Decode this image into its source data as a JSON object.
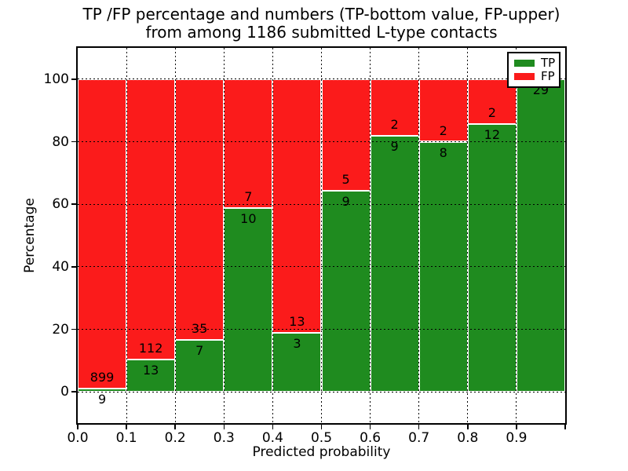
{
  "title": {
    "line1": "TP /FP percentage and numbers (TP-bottom value, FP-upper)",
    "line2": "from among 1186 submitted L-type contacts"
  },
  "axes": {
    "xlabel": "Predicted probability",
    "ylabel": "Percentage",
    "x_tick_labels": [
      "0.0",
      "0.1",
      "0.2",
      "0.3",
      "0.4",
      "0.5",
      "0.6",
      "0.7",
      "0.8",
      "0.9"
    ],
    "y_tick_labels": [
      "0",
      "20",
      "40",
      "60",
      "80",
      "100"
    ],
    "y_tick_values": [
      0,
      20,
      40,
      60,
      80,
      100
    ],
    "xlim": [
      0.0,
      1.0
    ],
    "ylim": [
      -10,
      110
    ],
    "grid_style": "dotted"
  },
  "legend": {
    "position": "upper-right",
    "items": [
      {
        "label": "TP",
        "color": "#1f8b1f"
      },
      {
        "label": "FP",
        "color": "#fb1b1b"
      }
    ]
  },
  "colors": {
    "tp": "#1f8b1f",
    "fp": "#fb1b1b",
    "background": "#ffffff",
    "grid": "#000000",
    "text": "#000000",
    "bar_edge": "#ffffff"
  },
  "chart_data": {
    "type": "bar",
    "stacked": true,
    "normalized": "each bar totals 100%",
    "title": "TP /FP percentage and numbers (TP-bottom value, FP-upper) from among 1186 submitted L-type contacts",
    "xlabel": "Predicted probability",
    "ylabel": "Percentage",
    "total_contacts": 1186,
    "bin_edges": [
      0.0,
      0.1,
      0.2,
      0.3,
      0.4,
      0.5,
      0.6,
      0.7,
      0.8,
      0.9,
      1.0
    ],
    "categories": [
      "0.0-0.1",
      "0.1-0.2",
      "0.2-0.3",
      "0.3-0.4",
      "0.4-0.5",
      "0.5-0.6",
      "0.6-0.7",
      "0.7-0.8",
      "0.8-0.9",
      "0.9-1.0"
    ],
    "series": [
      {
        "name": "TP",
        "color": "#1f8b1f",
        "counts": [
          9,
          13,
          7,
          10,
          3,
          9,
          9,
          8,
          12,
          29
        ],
        "percent": [
          0.99,
          10.4,
          16.67,
          58.82,
          18.75,
          64.29,
          81.82,
          80.0,
          85.71,
          100.0
        ]
      },
      {
        "name": "FP",
        "color": "#fb1b1b",
        "counts": [
          899,
          112,
          35,
          7,
          13,
          5,
          2,
          2,
          2,
          0
        ],
        "percent": [
          99.01,
          89.6,
          83.33,
          41.18,
          81.25,
          35.71,
          18.18,
          20.0,
          14.29,
          0.0
        ]
      }
    ],
    "bar_value_labels": {
      "tp": [
        "9",
        "13",
        "7",
        "10",
        "3",
        "9",
        "9",
        "8",
        "12",
        "29"
      ],
      "fp": [
        "899",
        "112",
        "35",
        "7",
        "13",
        "5",
        "2",
        "2",
        "2",
        ""
      ]
    },
    "legend_position": "upper right",
    "grid": true,
    "ylim": [
      -10,
      110
    ]
  }
}
